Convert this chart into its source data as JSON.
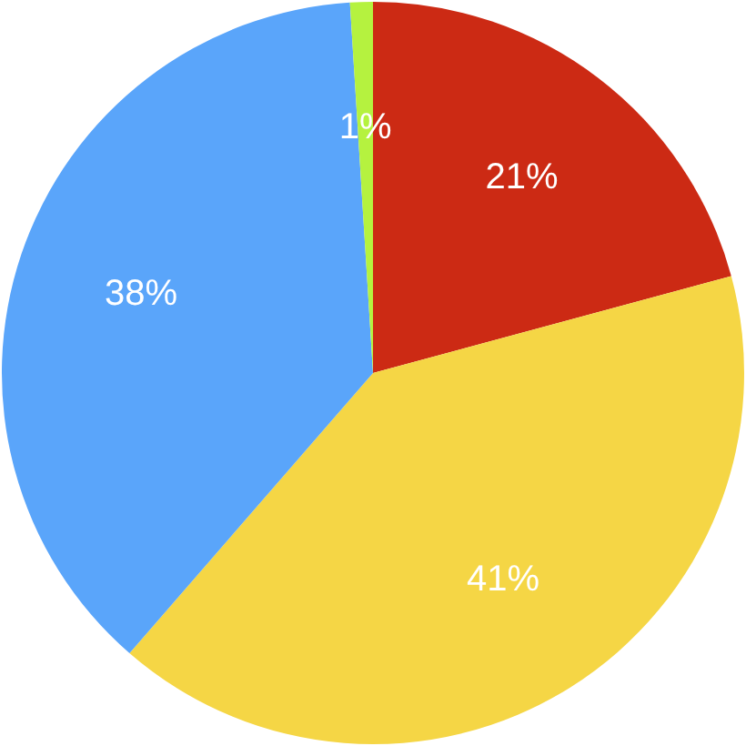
{
  "chart_data": {
    "type": "pie",
    "categories": [
      null,
      null,
      null,
      null
    ],
    "values": [
      21,
      41,
      38,
      1
    ],
    "colors": [
      "#cc2a14",
      "#f5d645",
      "#5aa5fa",
      "#b5f23f"
    ],
    "value_labels": [
      "21%",
      "41%",
      "38%",
      "1%"
    ],
    "legend": false
  }
}
